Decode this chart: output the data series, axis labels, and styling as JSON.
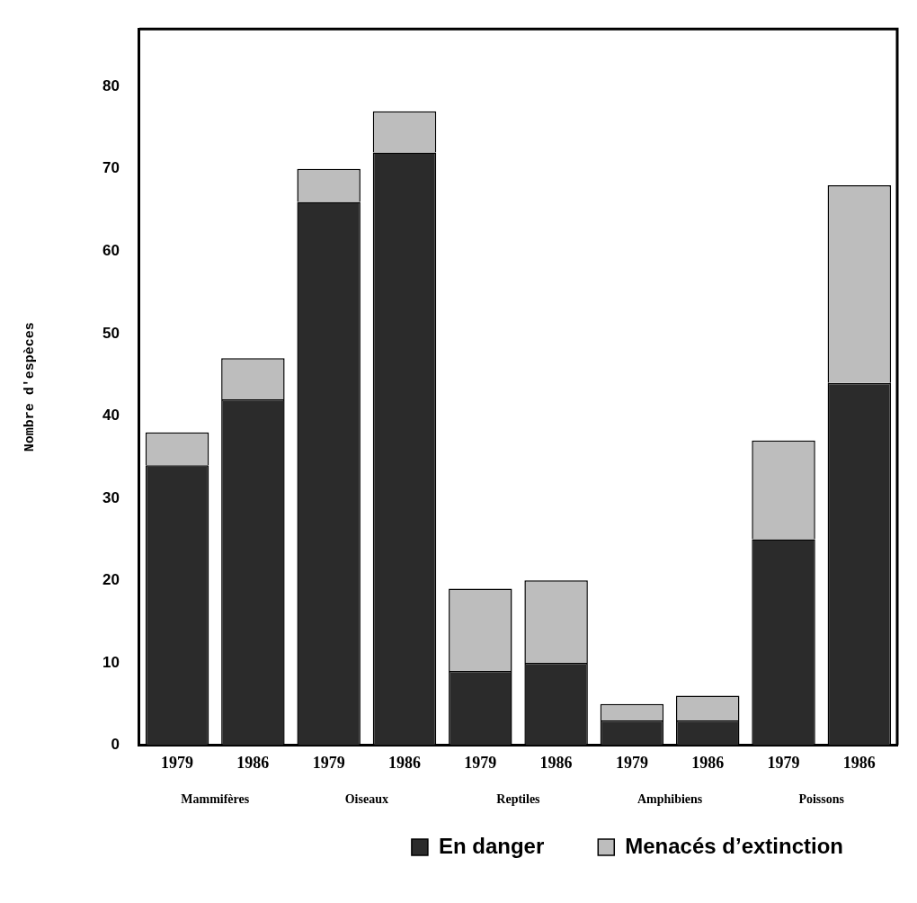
{
  "chart_data": {
    "type": "bar",
    "stacked": true,
    "ylabel": "Nombre d'espèces",
    "categories": [
      "1979",
      "1986",
      "1979",
      "1986",
      "1979",
      "1986",
      "1979",
      "1986",
      "1979",
      "1986"
    ],
    "series": [
      {
        "name": "En danger",
        "color": "#2b2b2b",
        "values": [
          34,
          42,
          66,
          72,
          9,
          10,
          3,
          3,
          25,
          44
        ]
      },
      {
        "name": "Menacés d’extinction",
        "color": "#bdbdbd",
        "values": [
          4,
          5,
          4,
          5,
          10,
          10,
          2,
          3,
          12,
          24
        ]
      }
    ],
    "ylim": [
      0,
      87
    ],
    "yticks": [
      0,
      10,
      20,
      30,
      40,
      50,
      60,
      70,
      80
    ],
    "annotations": [
      "Mammifères",
      "Oiseaux",
      "Reptiles",
      "Amphibiens",
      "Poissons"
    ],
    "legend": "bottom right"
  }
}
